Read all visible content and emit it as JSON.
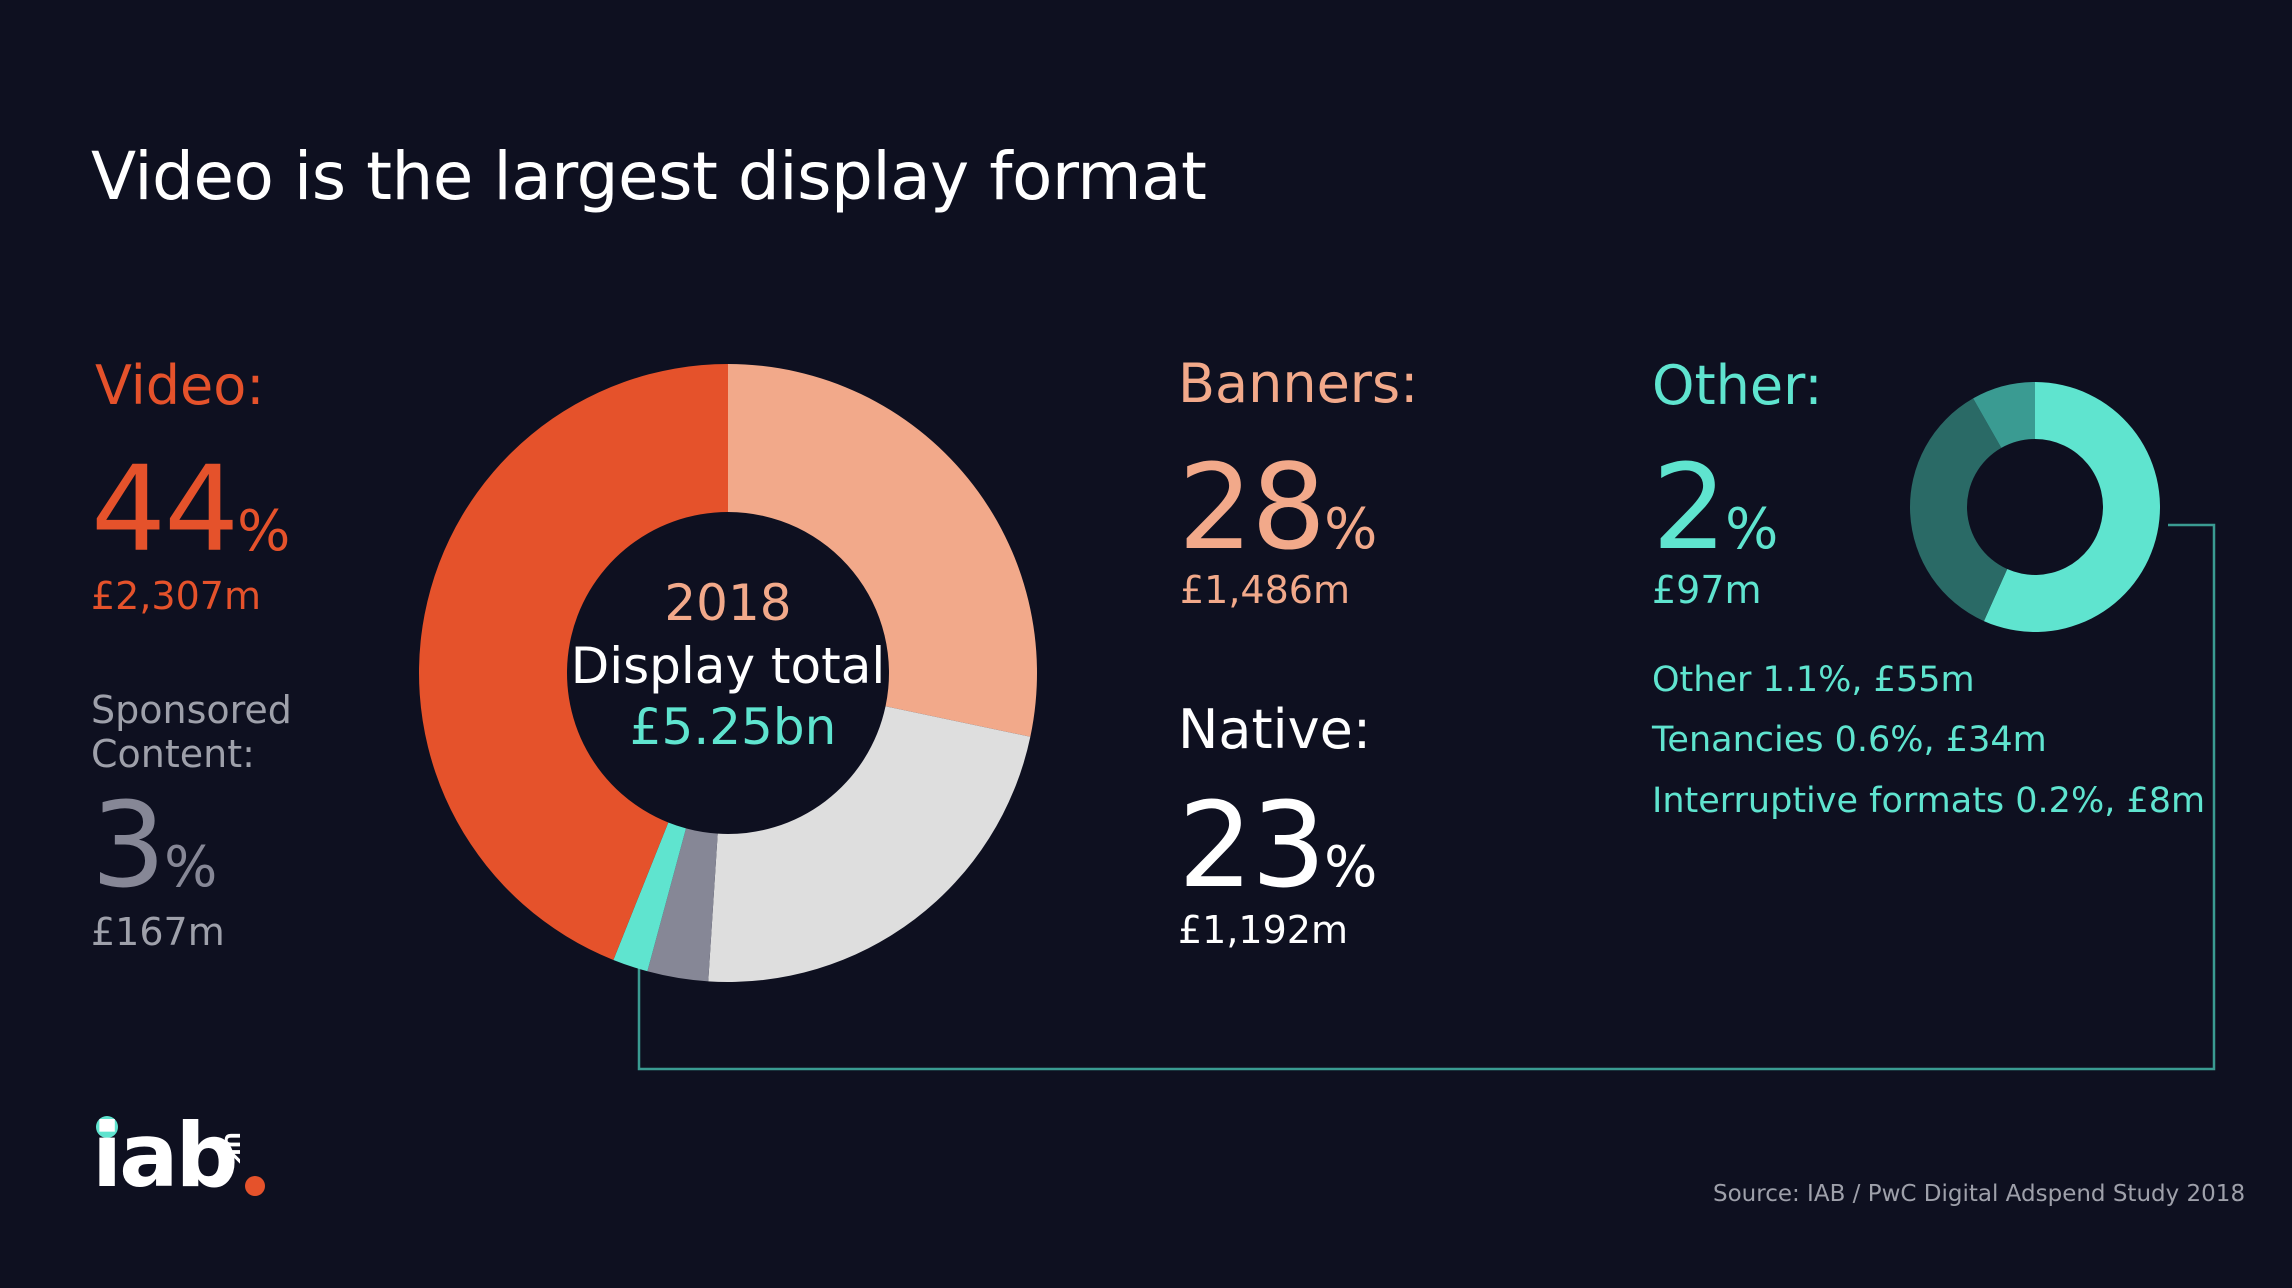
{
  "title": "Video is the largest display format",
  "colors": {
    "video": "#e5522b",
    "banners": "#f2a98a",
    "native": "#dedede",
    "sponsored": "#868796",
    "other": "#5fe4cf",
    "other_dark": "#2a6a66",
    "other_mid": "#3a9b92",
    "background": "#0e1020"
  },
  "segments": {
    "video": {
      "label": "Video:",
      "percent": "44",
      "pct_sign": "%",
      "amount": "£2,307m"
    },
    "sponsored": {
      "label_line1": "Sponsored",
      "label_line2": "Content:",
      "percent": "3",
      "pct_sign": "%",
      "amount": "£167m"
    },
    "banners": {
      "label": "Banners:",
      "percent": "28",
      "pct_sign": "%",
      "amount": "£1,486m"
    },
    "native": {
      "label": "Native:",
      "percent": "23",
      "pct_sign": "%",
      "amount": "£1,192m"
    },
    "other": {
      "label": "Other:",
      "percent": "2",
      "pct_sign": "%",
      "amount": "£97m"
    }
  },
  "center": {
    "year": "2018",
    "label": "Display total",
    "total": "£5.25bn"
  },
  "other_breakdown": [
    "Other 1.1%, £55m",
    "Tenancies 0.6%, £34m",
    "Interruptive formats 0.2%, £8m"
  ],
  "logo": {
    "text": "iab",
    "suffix": "UK"
  },
  "source": "Source: IAB / PwC Digital Adspend Study 2018",
  "chart_data": [
    {
      "type": "pie",
      "categories": [
        "Banners",
        "Native",
        "Sponsored Content",
        "Other",
        "Video"
      ],
      "values": [
        1486,
        1192,
        167,
        97,
        2307
      ],
      "percent": [
        28,
        23,
        3,
        2,
        44
      ],
      "title": "Video is the largest display format",
      "center_label": "2018 Display total £5.25bn"
    },
    {
      "type": "pie",
      "categories": [
        "Other",
        "Tenancies",
        "Interruptive formats"
      ],
      "values": [
        55,
        34,
        8
      ],
      "percent": [
        1.1,
        0.6,
        0.2
      ]
    }
  ]
}
